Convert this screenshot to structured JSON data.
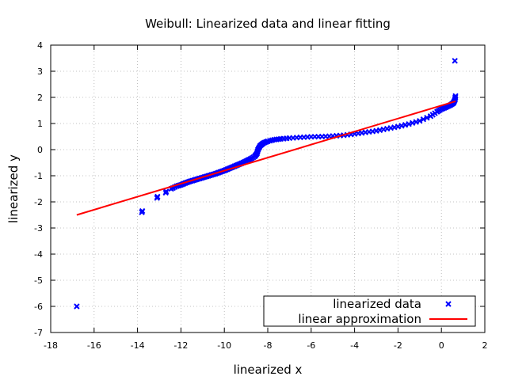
{
  "chart_data": {
    "type": "scatter",
    "title": "Weibull: Linearized data and linear fitting",
    "xlabel": "linearized x",
    "ylabel": "linearized y",
    "xlim": [
      -18,
      2
    ],
    "ylim": [
      -7,
      4
    ],
    "xticks": [
      -18,
      -16,
      -14,
      -12,
      -10,
      -8,
      -6,
      -4,
      -2,
      0,
      2
    ],
    "yticks": [
      -7,
      -6,
      -5,
      -4,
      -3,
      -2,
      -1,
      0,
      1,
      2,
      3,
      4
    ],
    "grid": true,
    "legend_position": "bottom-right",
    "series": [
      {
        "name": "linearized data",
        "kind": "scatter",
        "marker": "x",
        "color": "#0000ff",
        "points": [
          [
            -16.8,
            -6.0
          ],
          [
            -13.8,
            -2.4
          ],
          [
            -13.78,
            -2.35
          ],
          [
            -13.1,
            -1.85
          ],
          [
            -13.08,
            -1.8
          ],
          [
            -12.7,
            -1.65
          ],
          [
            -12.68,
            -1.6
          ],
          [
            -12.45,
            -1.5
          ],
          [
            -12.2,
            -1.4
          ],
          [
            -12.0,
            -1.35
          ],
          [
            -11.8,
            -1.28
          ],
          [
            -11.6,
            -1.22
          ],
          [
            -11.4,
            -1.17
          ],
          [
            -11.2,
            -1.12
          ],
          [
            -11.0,
            -1.07
          ],
          [
            -10.8,
            -1.02
          ],
          [
            -10.6,
            -0.97
          ],
          [
            -10.4,
            -0.92
          ],
          [
            -10.2,
            -0.86
          ],
          [
            -10.0,
            -0.8
          ],
          [
            -9.8,
            -0.73
          ],
          [
            -9.6,
            -0.66
          ],
          [
            -9.4,
            -0.59
          ],
          [
            -9.2,
            -0.52
          ],
          [
            -9.0,
            -0.44
          ],
          [
            -8.8,
            -0.36
          ],
          [
            -8.6,
            -0.26
          ],
          [
            -8.5,
            -0.15
          ],
          [
            -8.45,
            0.0
          ],
          [
            -8.35,
            0.15
          ],
          [
            -8.2,
            0.25
          ],
          [
            -8.0,
            0.32
          ],
          [
            -7.7,
            0.38
          ],
          [
            -7.4,
            0.41
          ],
          [
            -7.0,
            0.44
          ],
          [
            -6.5,
            0.47
          ],
          [
            -6.0,
            0.49
          ],
          [
            -5.5,
            0.5
          ],
          [
            -5.0,
            0.52
          ],
          [
            -4.5,
            0.55
          ],
          [
            -4.0,
            0.6
          ],
          [
            -3.5,
            0.66
          ],
          [
            -3.0,
            0.72
          ],
          [
            -2.5,
            0.8
          ],
          [
            -2.0,
            0.88
          ],
          [
            -1.5,
            0.98
          ],
          [
            -1.0,
            1.1
          ],
          [
            -0.5,
            1.28
          ],
          [
            -0.2,
            1.45
          ],
          [
            0.0,
            1.55
          ],
          [
            0.2,
            1.62
          ],
          [
            0.4,
            1.7
          ],
          [
            0.55,
            1.78
          ],
          [
            0.62,
            1.9
          ],
          [
            0.65,
            2.05
          ],
          [
            0.62,
            3.4
          ]
        ]
      },
      {
        "name": "linear approximation",
        "kind": "line",
        "color": "#ff0000",
        "points": [
          [
            -16.8,
            -2.5
          ],
          [
            0.65,
            1.85
          ]
        ]
      }
    ]
  }
}
